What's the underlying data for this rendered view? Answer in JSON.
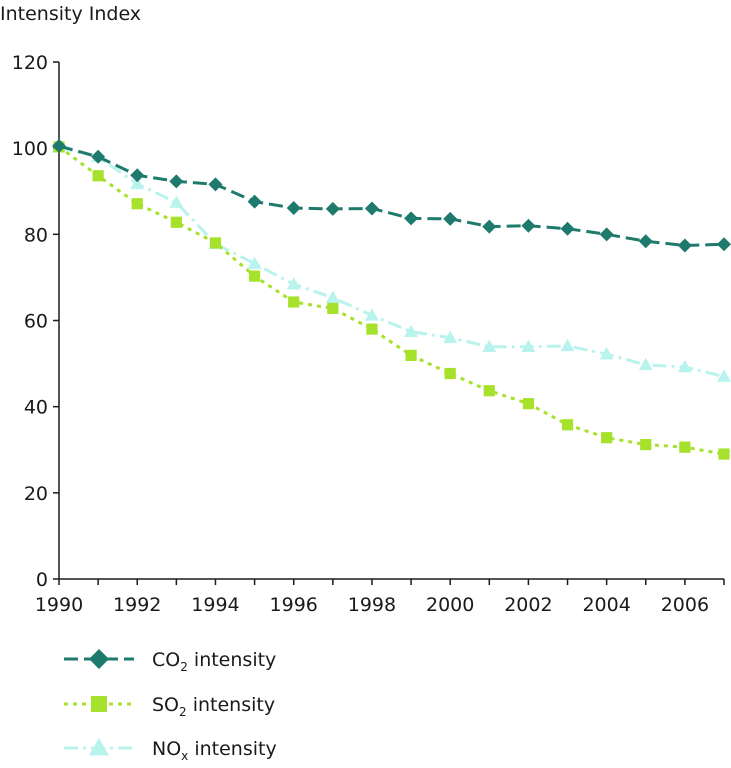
{
  "chart_data": {
    "type": "line",
    "ylabel": "Intensity Index",
    "xlabel": "",
    "x": [
      1990,
      1991,
      1992,
      1993,
      1994,
      1995,
      1996,
      1997,
      1998,
      1999,
      2000,
      2001,
      2002,
      2003,
      2004,
      2005,
      2006,
      2007
    ],
    "xlim": [
      1990,
      2007
    ],
    "ylim": [
      0,
      120
    ],
    "x_ticks": [
      "1990",
      "1992",
      "1994",
      "1996",
      "1998",
      "2000",
      "2002",
      "2004",
      "2006"
    ],
    "y_ticks": [
      "0",
      "20",
      "40",
      "60",
      "80",
      "100",
      "120"
    ],
    "grid": false,
    "legend_position": "bottom-left",
    "series": [
      {
        "name": "CO2 intensity",
        "legend_main": "CO",
        "legend_sub": "2",
        "legend_rest": " intensity",
        "color": "#1f7a6e",
        "marker": "diamond",
        "line_style": "dashed",
        "values": [
          100.5,
          98,
          93.7,
          92.3,
          91.6,
          87.6,
          86.1,
          85.9,
          86,
          83.7,
          83.6,
          81.8,
          82,
          81.3,
          80,
          78.4,
          77.4,
          77.7
        ]
      },
      {
        "name": "SO2 intensity",
        "legend_main": "SO",
        "legend_sub": "2",
        "legend_rest": " intensity",
        "color": "#a6e22b",
        "marker": "square",
        "line_style": "dotted",
        "values": [
          100.3,
          93.6,
          87.1,
          82.8,
          78,
          70.3,
          64.3,
          62.8,
          58,
          51.9,
          47.7,
          43.7,
          40.7,
          35.8,
          32.8,
          31.2,
          30.6,
          29
        ]
      },
      {
        "name": "NOx intensity",
        "legend_main": "NO",
        "legend_sub": "x",
        "legend_rest": " intensity",
        "color": "#b8f3ee",
        "marker": "triangle",
        "line_style": "dashdot",
        "values": [
          100.2,
          98,
          91.7,
          87.4,
          77.8,
          73.2,
          68.4,
          65.3,
          61.2,
          57.4,
          56,
          53.9,
          53.9,
          54.1,
          52.2,
          49.7,
          49.2,
          47
        ]
      }
    ]
  }
}
